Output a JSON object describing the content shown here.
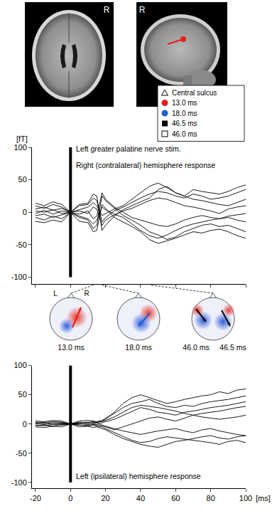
{
  "figure": {
    "mri": {
      "axial": {
        "label": "R"
      },
      "sagittal": {
        "label": "R",
        "dipole_color": "#e8201c"
      }
    },
    "legend_items": [
      {
        "marker": "triangle-open",
        "color": "#000000",
        "label": "Central sulcus"
      },
      {
        "marker": "circle",
        "color": "#e8201c",
        "label": "13.0 ms"
      },
      {
        "marker": "circle",
        "color": "#1e5fd0",
        "label": "18.0 ms"
      },
      {
        "marker": "square",
        "color": "#000000",
        "label": "46.5 ms"
      },
      {
        "marker": "square-open",
        "color": "#000000",
        "label": "46.0 ms"
      }
    ],
    "topomaps": [
      {
        "time": 13.0,
        "labels": [
          "13.0 ms"
        ],
        "side_labels": [
          "L",
          "R"
        ],
        "dipoles": [
          "#e8201c"
        ]
      },
      {
        "time": 18.0,
        "labels": [
          "18.0 ms"
        ],
        "dipoles": [
          "#1e5fd0"
        ]
      },
      {
        "time": 46.0,
        "labels": [
          "46.0 ms",
          "46.5 ms"
        ],
        "dipoles": [
          "#111111",
          "#111111"
        ]
      }
    ]
  },
  "chart_data": [
    {
      "type": "line",
      "title": "Right (contralateral) hemisphere response",
      "annotations": [
        "Left greater palatine nerve stim."
      ],
      "y_label": "[fT]",
      "x": [
        -20,
        -15,
        -10,
        -5,
        0,
        5,
        10,
        13,
        15,
        18,
        20,
        25,
        30,
        35,
        40,
        45,
        50,
        55,
        60,
        65,
        70,
        75,
        80,
        85,
        90,
        95,
        100
      ],
      "series": [
        {
          "color": "#000000",
          "values": [
            5,
            8,
            3,
            6,
            0,
            4,
            8,
            15,
            10,
            -5,
            -2,
            5,
            10,
            20,
            30,
            40,
            45,
            38,
            30,
            25,
            20,
            18,
            15,
            12,
            10,
            15,
            20
          ]
        },
        {
          "color": "#000000",
          "values": [
            -5,
            -3,
            -8,
            -4,
            0,
            -6,
            -10,
            -18,
            -12,
            8,
            4,
            -3,
            -8,
            -18,
            -28,
            -36,
            -40,
            -35,
            -28,
            -22,
            -18,
            -15,
            -12,
            -10,
            -8,
            -12,
            -15
          ]
        },
        {
          "color": "#000000",
          "values": [
            10,
            6,
            12,
            8,
            0,
            10,
            12,
            22,
            18,
            -15,
            -8,
            2,
            8,
            15,
            22,
            28,
            32,
            30,
            25,
            22,
            28,
            25,
            20,
            22,
            25,
            30,
            35
          ]
        },
        {
          "color": "#000000",
          "values": [
            -8,
            -12,
            -6,
            -10,
            0,
            -8,
            -12,
            -25,
            -20,
            25,
            18,
            6,
            -5,
            -12,
            -20,
            -30,
            -35,
            -42,
            -38,
            -30,
            -25,
            -20,
            -18,
            -22,
            -20,
            -25,
            -30
          ]
        },
        {
          "color": "#000000",
          "values": [
            2,
            0,
            4,
            -2,
            0,
            2,
            -2,
            8,
            5,
            -20,
            -12,
            -4,
            2,
            6,
            12,
            18,
            22,
            20,
            15,
            10,
            8,
            5,
            2,
            -2,
            5,
            8,
            10
          ]
        },
        {
          "color": "#000000",
          "values": [
            -2,
            3,
            -3,
            2,
            0,
            -3,
            2,
            -10,
            -6,
            30,
            20,
            8,
            0,
            -8,
            -12,
            -16,
            -20,
            -22,
            -18,
            -12,
            -8,
            -5,
            -8,
            -10,
            -6,
            -4,
            -2
          ]
        },
        {
          "color": "#000000",
          "values": [
            14,
            10,
            16,
            12,
            0,
            12,
            14,
            28,
            25,
            -28,
            -20,
            -6,
            4,
            10,
            16,
            22,
            35,
            40,
            30,
            25,
            35,
            32,
            30,
            28,
            32,
            38,
            42
          ]
        },
        {
          "color": "#000000",
          "values": [
            -14,
            -16,
            -12,
            -15,
            0,
            -14,
            -16,
            -30,
            -28,
            12,
            6,
            -8,
            -15,
            -22,
            -30,
            -42,
            -48,
            -44,
            -40,
            -35,
            -30,
            -32,
            -28,
            -26,
            -30,
            -36,
            -40
          ]
        },
        {
          "color": "#000000",
          "line_style": "thick",
          "x": [
            0,
            0
          ],
          "values": [
            -100,
            100
          ]
        }
      ],
      "xlim": [
        -22,
        100
      ],
      "xticks": [
        -20,
        0,
        20,
        40,
        60,
        80,
        100
      ],
      "ylim": [
        -110,
        100
      ],
      "yticks": [
        -100,
        -50,
        0,
        50,
        100
      ],
      "tick_labels": "y",
      "grid": false
    },
    {
      "type": "line",
      "title": "Left (ipsilateral) hemisphere response",
      "x_label": "[ms]",
      "x": [
        -20,
        -15,
        -10,
        -5,
        0,
        5,
        10,
        13,
        15,
        18,
        20,
        25,
        30,
        35,
        40,
        45,
        50,
        55,
        60,
        65,
        70,
        75,
        80,
        85,
        90,
        95,
        100
      ],
      "series": [
        {
          "color": "#000000",
          "values": [
            2,
            3,
            1,
            2,
            0,
            2,
            3,
            2,
            2,
            5,
            8,
            20,
            35,
            45,
            50,
            45,
            40,
            35,
            38,
            42,
            45,
            48,
            50,
            55,
            52,
            58,
            60
          ]
        },
        {
          "color": "#000000",
          "values": [
            -3,
            -2,
            -4,
            -1,
            0,
            -2,
            -3,
            -2,
            -4,
            -5,
            -8,
            -15,
            -22,
            -28,
            -32,
            -30,
            -25,
            -22,
            -24,
            -26,
            -28,
            -30,
            -32,
            -35,
            -30,
            -28,
            -32
          ]
        },
        {
          "color": "#000000",
          "values": [
            5,
            4,
            6,
            5,
            0,
            5,
            6,
            5,
            4,
            6,
            10,
            18,
            28,
            35,
            38,
            42,
            35,
            30,
            28,
            32,
            30,
            35,
            38,
            40,
            42,
            45,
            48
          ]
        },
        {
          "color": "#000000",
          "values": [
            -5,
            -6,
            -4,
            -5,
            0,
            -5,
            -4,
            -6,
            -5,
            -8,
            -10,
            -18,
            -25,
            -30,
            -35,
            -38,
            -40,
            -35,
            -30,
            -28,
            -25,
            -22,
            -20,
            -24,
            -26,
            -22,
            -20
          ]
        },
        {
          "color": "#000000",
          "values": [
            0,
            1,
            -1,
            0,
            0,
            0,
            1,
            0,
            -1,
            2,
            4,
            8,
            15,
            22,
            28,
            25,
            20,
            18,
            15,
            20,
            22,
            25,
            28,
            30,
            32,
            35,
            38
          ]
        },
        {
          "color": "#000000",
          "values": [
            1,
            -1,
            2,
            1,
            0,
            1,
            -1,
            1,
            2,
            -2,
            -4,
            -8,
            -12,
            -15,
            -18,
            -15,
            -12,
            -10,
            -8,
            -12,
            -15,
            -10,
            -8,
            -12,
            -15,
            -18,
            -20
          ]
        },
        {
          "color": "#000000",
          "values": [
            3,
            2,
            4,
            3,
            0,
            3,
            2,
            4,
            3,
            4,
            6,
            12,
            20,
            28,
            32,
            30,
            28,
            25,
            22,
            18,
            15,
            18,
            20,
            22,
            25,
            28,
            30
          ]
        },
        {
          "color": "#000000",
          "values": [
            -2,
            -3,
            -1,
            -2,
            0,
            -2,
            -3,
            -1,
            -2,
            -3,
            -5,
            -10,
            -5,
            0,
            5,
            10,
            12,
            8,
            5,
            10,
            15,
            12,
            10,
            8,
            10,
            12,
            15
          ]
        },
        {
          "color": "#000000",
          "line_style": "thick",
          "x": [
            0,
            0
          ],
          "values": [
            -100,
            100
          ]
        }
      ],
      "xlim": [
        -22,
        100
      ],
      "xticks": [
        -20,
        0,
        20,
        40,
        60,
        80,
        100
      ],
      "ylim": [
        -110,
        100
      ],
      "yticks": [
        -100,
        -50,
        0,
        50,
        100
      ],
      "grid": false
    }
  ]
}
